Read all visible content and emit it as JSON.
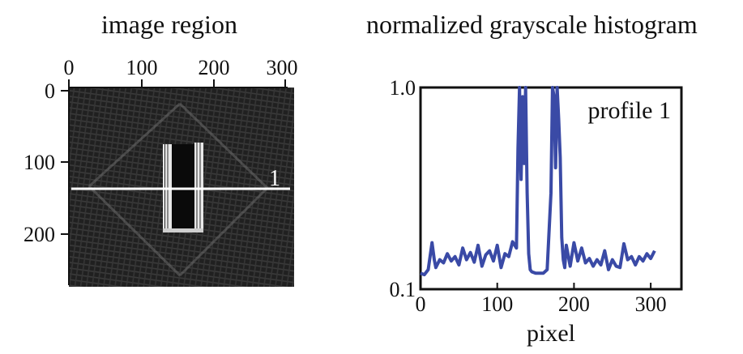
{
  "left_panel": {
    "title": "image region",
    "x_ticks": [
      "0",
      "100",
      "200",
      "300"
    ],
    "y_ticks": [
      "0",
      "100",
      "200"
    ],
    "profile_line_label": "1"
  },
  "right_panel": {
    "title": "normalized grayscale histogram"
  },
  "chart_data": {
    "type": "line",
    "title": "normalized grayscale histogram",
    "xlabel": "pixel",
    "ylabel": "",
    "xlim": [
      0,
      340
    ],
    "ylim": [
      0.1,
      1.0
    ],
    "y_scale": "log",
    "x_ticks": [
      0,
      100,
      200,
      300
    ],
    "y_ticks": [
      {
        "value": 0.1,
        "label": "0.1"
      },
      {
        "value": 1.0,
        "label": "1.0"
      }
    ],
    "annotation": "profile 1",
    "series_color": "#3a4aa6",
    "series": [
      {
        "x": [
          0,
          5,
          10,
          15,
          18,
          20,
          25,
          30,
          35,
          40,
          45,
          50,
          55,
          60,
          65,
          70,
          75,
          80,
          85,
          90,
          95,
          100,
          105,
          110,
          115,
          120,
          125,
          127,
          129,
          131,
          133,
          135,
          137,
          139,
          141,
          143,
          145,
          150,
          155,
          160,
          165,
          170,
          172,
          174,
          176,
          178,
          180,
          182,
          184,
          186,
          188,
          190,
          195,
          200,
          205,
          210,
          215,
          220,
          225,
          230,
          235,
          240,
          245,
          250,
          255,
          260,
          265,
          270,
          275,
          280,
          285,
          290,
          295,
          300,
          305
        ],
        "y": [
          0.12,
          0.118,
          0.125,
          0.17,
          0.14,
          0.128,
          0.14,
          0.135,
          0.15,
          0.138,
          0.145,
          0.132,
          0.16,
          0.14,
          0.152,
          0.136,
          0.165,
          0.13,
          0.148,
          0.155,
          0.138,
          0.165,
          0.128,
          0.15,
          0.145,
          0.172,
          0.16,
          0.5,
          1.0,
          0.35,
          0.9,
          0.42,
          1.0,
          0.3,
          0.15,
          0.125,
          0.122,
          0.12,
          0.12,
          0.12,
          0.125,
          0.3,
          1.0,
          0.9,
          0.4,
          1.0,
          0.7,
          0.45,
          0.18,
          0.14,
          0.128,
          0.165,
          0.13,
          0.17,
          0.138,
          0.16,
          0.135,
          0.142,
          0.13,
          0.14,
          0.132,
          0.155,
          0.125,
          0.14,
          0.13,
          0.128,
          0.168,
          0.14,
          0.145,
          0.132,
          0.145,
          0.138,
          0.15,
          0.142,
          0.155
        ]
      }
    ]
  }
}
